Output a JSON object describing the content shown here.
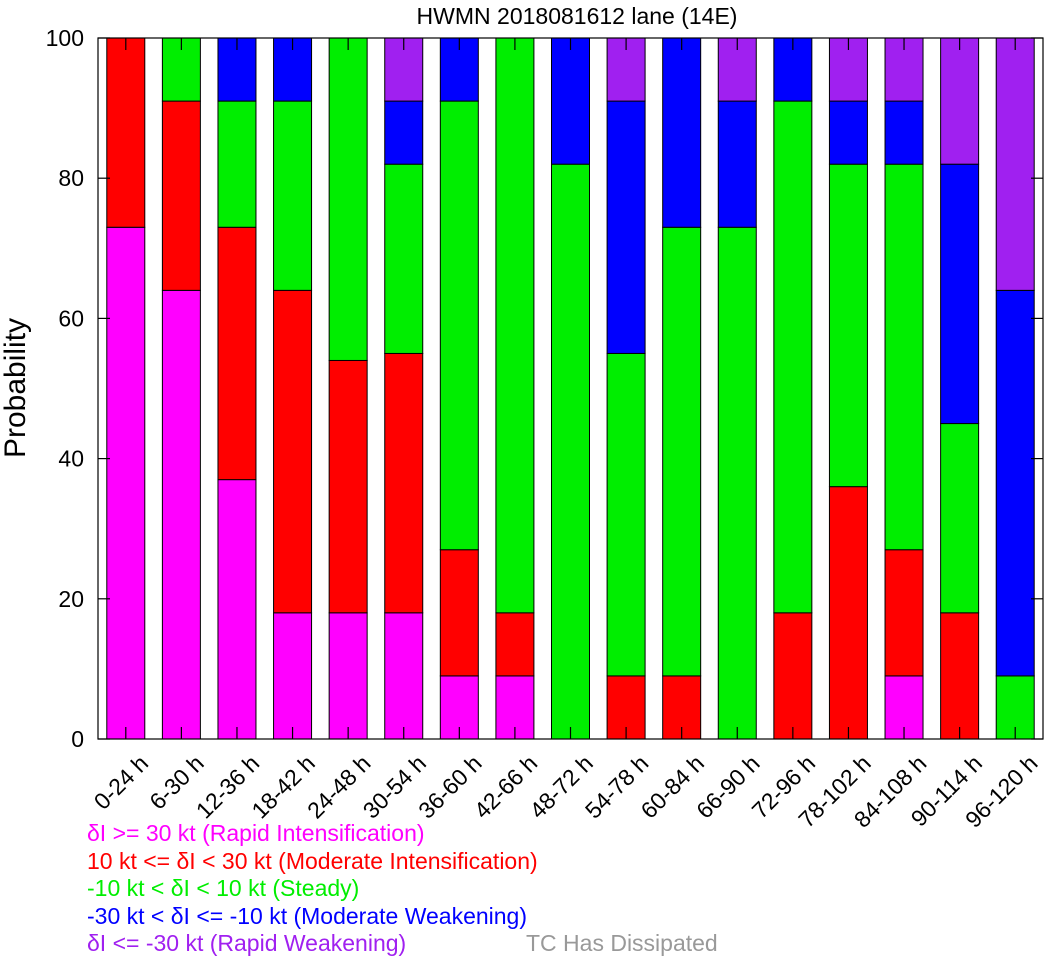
{
  "chart_data": {
    "type": "bar",
    "stacked": true,
    "title": "HWMN 2018081612 lane (14E)",
    "xlabel": "",
    "ylabel": "Probability",
    "ylim": [
      0,
      100
    ],
    "yticks": [
      "0",
      "20",
      "40",
      "60",
      "80",
      "100"
    ],
    "ytick_values": [
      0,
      20,
      40,
      60,
      80,
      100
    ],
    "grid": false,
    "legend_position": "bottom",
    "categories": [
      "0-24 h",
      "6-30 h",
      "12-36 h",
      "18-42 h",
      "24-48 h",
      "30-54 h",
      "36-60 h",
      "42-66 h",
      "48-72 h",
      "54-78 h",
      "60-84 h",
      "66-90 h",
      "72-96 h",
      "78-102 h",
      "84-108 h",
      "90-114 h",
      "96-120 h"
    ],
    "series": [
      {
        "name": "δI >= 30 kt (Rapid Intensification)",
        "color": "#ff00ff",
        "values": [
          73,
          64,
          37,
          18,
          18,
          18,
          9,
          9,
          0,
          0,
          0,
          0,
          0,
          0,
          9,
          0,
          0
        ]
      },
      {
        "name": "10 kt <= δI < 30 kt (Moderate Intensification)",
        "color": "#ff0000",
        "values": [
          27,
          27,
          36,
          46,
          36,
          37,
          18,
          9,
          0,
          9,
          9,
          0,
          18,
          36,
          18,
          18,
          0
        ]
      },
      {
        "name": "-10 kt < δI < 10 kt (Steady)",
        "color": "#00ee00",
        "values": [
          0,
          9,
          18,
          27,
          46,
          27,
          64,
          82,
          82,
          46,
          64,
          73,
          73,
          46,
          55,
          27,
          9
        ]
      },
      {
        "name": "-30 kt < δI <= -10 kt (Moderate Weakening)",
        "color": "#0000ff",
        "values": [
          0,
          0,
          9,
          9,
          0,
          9,
          9,
          0,
          18,
          36,
          27,
          18,
          9,
          9,
          9,
          37,
          55
        ]
      },
      {
        "name": "δI <= -30 kt (Rapid Weakening)",
        "color": "#a020f0",
        "values": [
          0,
          0,
          0,
          0,
          0,
          9,
          0,
          0,
          0,
          9,
          0,
          9,
          0,
          9,
          9,
          18,
          36
        ]
      },
      {
        "name": "TC Has Dissipated",
        "color": "#999999",
        "values": [
          0,
          0,
          0,
          0,
          0,
          0,
          0,
          0,
          0,
          0,
          0,
          0,
          0,
          0,
          0,
          0,
          0
        ]
      }
    ]
  }
}
